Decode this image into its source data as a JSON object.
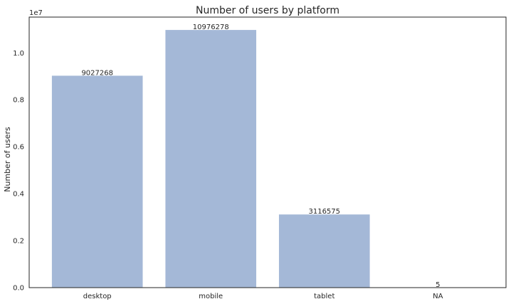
{
  "chart_data": {
    "type": "bar",
    "title": "Number of users by platform",
    "xlabel": "",
    "ylabel": "Number of users",
    "offset_text": "1e7",
    "categories": [
      "desktop",
      "mobile",
      "tablet",
      "NA"
    ],
    "values": [
      9027268,
      10976278,
      3116575,
      5
    ],
    "data_labels": [
      "9027268",
      "10976278",
      "3116575",
      "5"
    ],
    "ylim": [
      0,
      11525092
    ],
    "yticks": [
      0,
      2000000,
      4000000,
      6000000,
      8000000,
      10000000
    ],
    "ytick_labels": [
      "0.0",
      "0.2",
      "0.4",
      "0.6",
      "0.8",
      "1.0"
    ],
    "bar_color": "#a4b8d7",
    "grid": false,
    "legend": "none"
  }
}
